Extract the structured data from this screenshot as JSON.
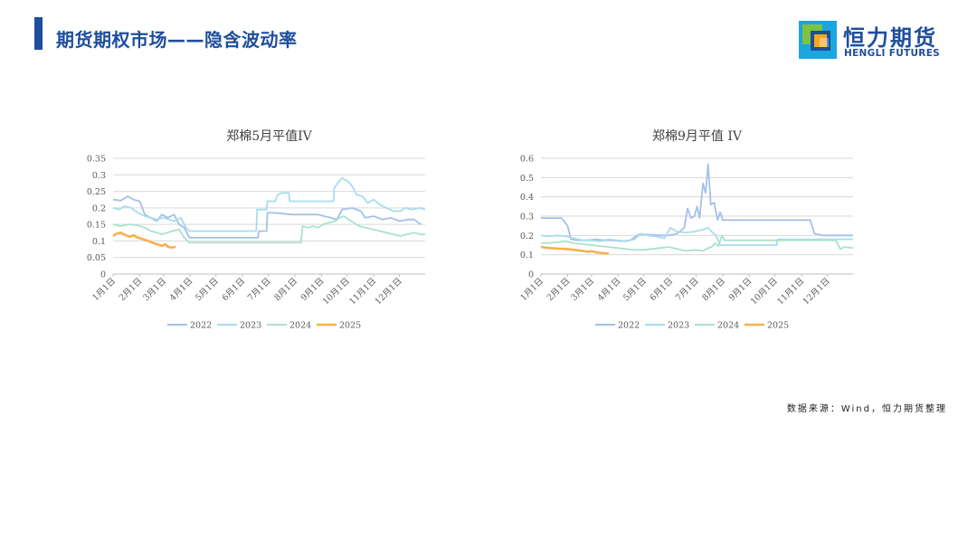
{
  "header": {
    "title": "期货期权市场——隐含波动率"
  },
  "logo": {
    "name_cn": "恒力期货",
    "name_en": "HENGLI FUTURES"
  },
  "footer": {
    "source": "数据来源：Wind，恒力期货整理"
  },
  "colors": {
    "2022": "#a4c1e8",
    "2023": "#a8dcee",
    "2024": "#a9e3cb",
    "2025": "#f6b04d",
    "brand": "#1f4e9c"
  },
  "chart_data": [
    {
      "type": "line",
      "title": "郑棉5月平值IV",
      "x_ticks": [
        "1月1日",
        "2月1日",
        "3月1日",
        "4月1日",
        "5月1日",
        "6月1日",
        "7月1日",
        "8月1日",
        "9月1日",
        "10月1日",
        "11月1日",
        "12月1日"
      ],
      "x_unit": "day_of_year",
      "ylim": [
        0,
        0.35
      ],
      "y_ticks": [
        "0",
        "0.05",
        "0.1",
        "0.15",
        "0.2",
        "0.25",
        "0.3",
        "0.35"
      ],
      "y_tick_values": [
        0,
        0.05,
        0.1,
        0.15,
        0.2,
        0.25,
        0.3,
        0.35
      ],
      "grid": true,
      "legend": "bottom",
      "series": [
        {
          "name": "2022",
          "points": [
            [
              1,
              0.225
            ],
            [
              10,
              0.222
            ],
            [
              18,
              0.235
            ],
            [
              25,
              0.225
            ],
            [
              32,
              0.22
            ],
            [
              38,
              0.18
            ],
            [
              45,
              0.17
            ],
            [
              52,
              0.16
            ],
            [
              58,
              0.18
            ],
            [
              65,
              0.17
            ],
            [
              72,
              0.18
            ],
            [
              78,
              0.15
            ],
            [
              84,
              0.14
            ],
            [
              90,
              0.11
            ],
            [
              110,
              0.11
            ],
            [
              130,
              0.11
            ],
            [
              150,
              0.11
            ],
            [
              170,
              0.11
            ],
            [
              171,
              0.13
            ],
            [
              180,
              0.13
            ],
            [
              181,
              0.185
            ],
            [
              190,
              0.185
            ],
            [
              210,
              0.18
            ],
            [
              240,
              0.18
            ],
            [
              255,
              0.17
            ],
            [
              262,
              0.165
            ],
            [
              268,
              0.195
            ],
            [
              280,
              0.2
            ],
            [
              290,
              0.19
            ],
            [
              295,
              0.17
            ],
            [
              305,
              0.175
            ],
            [
              315,
              0.165
            ],
            [
              325,
              0.17
            ],
            [
              335,
              0.16
            ],
            [
              345,
              0.165
            ],
            [
              352,
              0.165
            ],
            [
              360,
              0.15
            ]
          ]
        },
        {
          "name": "2023",
          "points": [
            [
              1,
              0.2
            ],
            [
              8,
              0.195
            ],
            [
              14,
              0.205
            ],
            [
              22,
              0.2
            ],
            [
              30,
              0.185
            ],
            [
              38,
              0.175
            ],
            [
              45,
              0.17
            ],
            [
              52,
              0.165
            ],
            [
              60,
              0.17
            ],
            [
              66,
              0.165
            ],
            [
              72,
              0.16
            ],
            [
              80,
              0.17
            ],
            [
              86,
              0.14
            ],
            [
              90,
              0.13
            ],
            [
              150,
              0.13
            ],
            [
              168,
              0.13
            ],
            [
              169,
              0.195
            ],
            [
              180,
              0.195
            ],
            [
              181,
              0.22
            ],
            [
              190,
              0.22
            ],
            [
              193,
              0.24
            ],
            [
              198,
              0.245
            ],
            [
              206,
              0.245
            ],
            [
              207,
              0.22
            ],
            [
              230,
              0.22
            ],
            [
              258,
              0.22
            ],
            [
              259,
              0.26
            ],
            [
              263,
              0.275
            ],
            [
              268,
              0.29
            ],
            [
              275,
              0.28
            ],
            [
              280,
              0.265
            ],
            [
              285,
              0.24
            ],
            [
              292,
              0.235
            ],
            [
              298,
              0.215
            ],
            [
              305,
              0.225
            ],
            [
              312,
              0.21
            ],
            [
              320,
              0.2
            ],
            [
              328,
              0.19
            ],
            [
              336,
              0.19
            ],
            [
              342,
              0.2
            ],
            [
              350,
              0.195
            ],
            [
              358,
              0.2
            ],
            [
              365,
              0.195
            ]
          ]
        },
        {
          "name": "2024",
          "points": [
            [
              1,
              0.15
            ],
            [
              10,
              0.145
            ],
            [
              20,
              0.15
            ],
            [
              30,
              0.147
            ],
            [
              38,
              0.14
            ],
            [
              45,
              0.13
            ],
            [
              52,
              0.125
            ],
            [
              58,
              0.12
            ],
            [
              64,
              0.125
            ],
            [
              70,
              0.13
            ],
            [
              78,
              0.135
            ],
            [
              84,
              0.11
            ],
            [
              90,
              0.095
            ],
            [
              100,
              0.095
            ],
            [
              120,
              0.095
            ],
            [
              150,
              0.095
            ],
            [
              180,
              0.095
            ],
            [
              200,
              0.095
            ],
            [
              220,
              0.095
            ],
            [
              222,
              0.145
            ],
            [
              228,
              0.14
            ],
            [
              234,
              0.145
            ],
            [
              240,
              0.14
            ],
            [
              246,
              0.15
            ],
            [
              252,
              0.155
            ],
            [
              260,
              0.16
            ],
            [
              265,
              0.17
            ],
            [
              270,
              0.175
            ],
            [
              276,
              0.165
            ],
            [
              282,
              0.155
            ],
            [
              288,
              0.145
            ],
            [
              296,
              0.14
            ],
            [
              304,
              0.135
            ],
            [
              312,
              0.13
            ],
            [
              320,
              0.125
            ],
            [
              328,
              0.12
            ],
            [
              336,
              0.115
            ],
            [
              344,
              0.12
            ],
            [
              352,
              0.125
            ],
            [
              360,
              0.12
            ],
            [
              365,
              0.12
            ]
          ]
        },
        {
          "name": "2025",
          "points": [
            [
              1,
              0.115
            ],
            [
              5,
              0.122
            ],
            [
              10,
              0.125
            ],
            [
              15,
              0.118
            ],
            [
              20,
              0.113
            ],
            [
              25,
              0.117
            ],
            [
              30,
              0.11
            ],
            [
              35,
              0.106
            ],
            [
              40,
              0.102
            ],
            [
              45,
              0.097
            ],
            [
              50,
              0.092
            ],
            [
              55,
              0.088
            ],
            [
              58,
              0.085
            ],
            [
              62,
              0.09
            ],
            [
              65,
              0.082
            ],
            [
              70,
              0.08
            ],
            [
              74,
              0.083
            ]
          ]
        }
      ]
    },
    {
      "type": "line",
      "title": "郑棉9月平值 IV",
      "x_ticks": [
        "1月1日",
        "2月1日",
        "3月1日",
        "4月1日",
        "5月1日",
        "6月1日",
        "7月1日",
        "8月1日",
        "9月1日",
        "10月1日",
        "11月1日",
        "12月1日"
      ],
      "x_unit": "day_of_year",
      "ylim": [
        0,
        0.6
      ],
      "y_ticks": [
        "0",
        "0.1",
        "0.2",
        "0.3",
        "0.4",
        "0.5",
        "0.6"
      ],
      "y_tick_values": [
        0,
        0.1,
        0.2,
        0.3,
        0.4,
        0.5,
        0.6
      ],
      "grid": true,
      "legend": "bottom",
      "series": [
        {
          "name": "2022",
          "points": [
            [
              1,
              0.29
            ],
            [
              15,
              0.29
            ],
            [
              25,
              0.29
            ],
            [
              32,
              0.25
            ],
            [
              36,
              0.18
            ],
            [
              45,
              0.175
            ],
            [
              55,
              0.175
            ],
            [
              65,
              0.18
            ],
            [
              75,
              0.175
            ],
            [
              85,
              0.175
            ],
            [
              95,
              0.17
            ],
            [
              105,
              0.175
            ],
            [
              115,
              0.205
            ],
            [
              125,
              0.205
            ],
            [
              140,
              0.2
            ],
            [
              150,
              0.2
            ],
            [
              160,
              0.21
            ],
            [
              168,
              0.24
            ],
            [
              172,
              0.34
            ],
            [
              176,
              0.29
            ],
            [
              180,
              0.3
            ],
            [
              183,
              0.35
            ],
            [
              186,
              0.29
            ],
            [
              190,
              0.47
            ],
            [
              193,
              0.42
            ],
            [
              196,
              0.57
            ],
            [
              199,
              0.36
            ],
            [
              203,
              0.37
            ],
            [
              207,
              0.28
            ],
            [
              210,
              0.32
            ],
            [
              213,
              0.28
            ],
            [
              230,
              0.28
            ],
            [
              260,
              0.28
            ],
            [
              290,
              0.28
            ],
            [
              315,
              0.28
            ],
            [
              320,
              0.21
            ],
            [
              330,
              0.2
            ],
            [
              340,
              0.2
            ],
            [
              350,
              0.2
            ],
            [
              365,
              0.2
            ]
          ]
        },
        {
          "name": "2023",
          "points": [
            [
              1,
              0.2
            ],
            [
              10,
              0.195
            ],
            [
              20,
              0.2
            ],
            [
              30,
              0.195
            ],
            [
              40,
              0.185
            ],
            [
              50,
              0.175
            ],
            [
              60,
              0.175
            ],
            [
              70,
              0.17
            ],
            [
              80,
              0.18
            ],
            [
              90,
              0.175
            ],
            [
              100,
              0.17
            ],
            [
              110,
              0.18
            ],
            [
              118,
              0.21
            ],
            [
              125,
              0.2
            ],
            [
              135,
              0.195
            ],
            [
              145,
              0.185
            ],
            [
              152,
              0.24
            ],
            [
              160,
              0.22
            ],
            [
              170,
              0.215
            ],
            [
              180,
              0.22
            ],
            [
              190,
              0.23
            ],
            [
              196,
              0.24
            ],
            [
              200,
              0.22
            ],
            [
              205,
              0.2
            ],
            [
              210,
              0.15
            ],
            [
              220,
              0.15
            ],
            [
              240,
              0.15
            ],
            [
              260,
              0.15
            ],
            [
              276,
              0.15
            ],
            [
              277,
              0.18
            ],
            [
              290,
              0.18
            ],
            [
              315,
              0.18
            ],
            [
              340,
              0.18
            ],
            [
              365,
              0.18
            ]
          ]
        },
        {
          "name": "2024",
          "points": [
            [
              1,
              0.16
            ],
            [
              10,
              0.16
            ],
            [
              20,
              0.165
            ],
            [
              30,
              0.17
            ],
            [
              40,
              0.16
            ],
            [
              50,
              0.155
            ],
            [
              60,
              0.15
            ],
            [
              70,
              0.145
            ],
            [
              80,
              0.14
            ],
            [
              90,
              0.135
            ],
            [
              100,
              0.13
            ],
            [
              110,
              0.125
            ],
            [
              120,
              0.125
            ],
            [
              130,
              0.13
            ],
            [
              140,
              0.135
            ],
            [
              150,
              0.14
            ],
            [
              160,
              0.13
            ],
            [
              170,
              0.12
            ],
            [
              180,
              0.125
            ],
            [
              190,
              0.12
            ],
            [
              196,
              0.135
            ],
            [
              200,
              0.14
            ],
            [
              204,
              0.16
            ],
            [
              208,
              0.145
            ],
            [
              212,
              0.2
            ],
            [
              215,
              0.175
            ],
            [
              225,
              0.175
            ],
            [
              260,
              0.175
            ],
            [
              290,
              0.175
            ],
            [
              330,
              0.175
            ],
            [
              345,
              0.175
            ],
            [
              350,
              0.13
            ],
            [
              355,
              0.14
            ],
            [
              365,
              0.135
            ]
          ]
        },
        {
          "name": "2025",
          "points": [
            [
              1,
              0.14
            ],
            [
              5,
              0.138
            ],
            [
              10,
              0.135
            ],
            [
              20,
              0.132
            ],
            [
              30,
              0.13
            ],
            [
              40,
              0.125
            ],
            [
              50,
              0.12
            ],
            [
              55,
              0.115
            ],
            [
              60,
              0.118
            ],
            [
              65,
              0.113
            ],
            [
              70,
              0.11
            ],
            [
              75,
              0.108
            ],
            [
              80,
              0.107
            ]
          ]
        }
      ]
    }
  ]
}
